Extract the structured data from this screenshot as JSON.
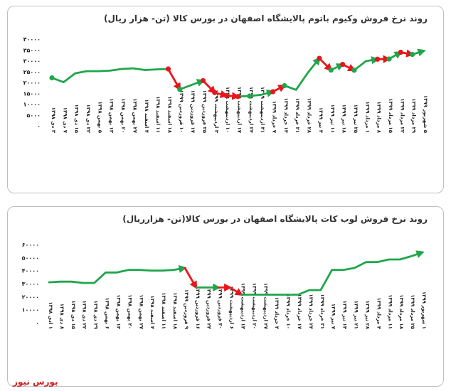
{
  "colors": {
    "green": "#1fa64b",
    "red": "#e8161b",
    "tick_text": "#222222",
    "title_text": "#333333"
  },
  "watermark": "بورس نیوز",
  "chart_data": [
    {
      "type": "line",
      "title": "روند نرخ فروش وکیوم باتوم پالایشگاه اصفهان در بورس کالا (تن- هزار ریال)",
      "ylim": [
        0,
        40000
      ],
      "yticks": [
        0,
        5000,
        10000,
        15000,
        20000,
        25000,
        30000,
        35000,
        40000
      ],
      "ytick_labels": [
        "۰",
        "۵۰۰۰",
        "۱۰۰۰۰",
        "۱۵۰۰۰",
        "۲۰۰۰۰",
        "۲۵۰۰۰",
        "۳۰۰۰۰",
        "۳۵۰۰۰",
        "۴۰۰۰۰"
      ],
      "grid": false,
      "categories": [
        "۳ دی ۱۳۹۸",
        "۷ دی ۱۳۹۸",
        "۱۵ دی ۱۳۹۸",
        "۲۲ دی ۱۳۹۸",
        "۵ بهمن ۱۳۹۸",
        "۱۳ بهمن ۱۳۹۸",
        "۲۰ بهمن ۱۳۹۸",
        "۲۷ بهمن ۱۳۹۸",
        "۴ اسفند ۱۳۹۸",
        "۱۱ اسفند ۱۳۹۸",
        "۱۸ اسفند ۱۳۹۸",
        "۱۰ فروردین ۱۳۹۹",
        "۱۷ فروردین ۱۳۹۹",
        "۲۵ فروردین ۱۳۹۹",
        "۳ اردیبهشت ۱۳۹۹",
        "۱۰ اردیبهشت ۱۳۹۹",
        "۱۷ اردیبهشت ۱۳۹۹",
        "۲۴ اردیبهشت ۱۳۹۹",
        "۳۱ اردیبهشت ۱۳۹۹",
        "۷ خرداد ۱۳۹۹",
        "۱۴ خرداد ۱۳۹۹",
        "۲۱ خرداد ۱۳۹۹",
        "۲۸ خرداد ۱۳۹۹",
        "۴ تیر ۱۳۹۹",
        "۱۱ تیر ۱۳۹۹",
        "۱۸ تیر ۱۳۹۹",
        "۲۵ تیر ۱۳۹۹",
        "۱ مرداد ۱۳۹۹",
        "۸ مرداد ۱۳۹۹",
        "۱۵ مرداد ۱۳۹۹",
        "۲۲ مرداد ۱۳۹۹",
        "۲۹ مرداد ۱۳۹۹",
        "۵ شهریور ۱۳۹۹"
      ],
      "values": [
        21800,
        19800,
        23900,
        24900,
        24900,
        25100,
        25900,
        26200,
        25400,
        25700,
        25900,
        16500,
        18500,
        20500,
        15000,
        13600,
        13200,
        13400,
        14000,
        15400,
        18200,
        16300,
        24100,
        30800,
        25400,
        28000,
        25300,
        29500,
        30400,
        30500,
        33600,
        32600,
        34300
      ],
      "markers": [
        {
          "index": 0,
          "color": "green"
        },
        {
          "index": 10,
          "color": "red"
        },
        {
          "index": 11,
          "color": "green"
        },
        {
          "index": 13,
          "color": "red"
        },
        {
          "index": 14,
          "color": "red"
        },
        {
          "index": 15,
          "color": "red"
        },
        {
          "index": 16,
          "color": "red"
        },
        {
          "index": 17,
          "color": "green"
        },
        {
          "index": 19,
          "color": "red"
        },
        {
          "index": 20,
          "color": "green"
        },
        {
          "index": 23,
          "color": "red"
        },
        {
          "index": 24,
          "color": "green"
        },
        {
          "index": 25,
          "color": "red"
        },
        {
          "index": 26,
          "color": "green"
        },
        {
          "index": 28,
          "color": "red"
        },
        {
          "index": 29,
          "color": "green"
        },
        {
          "index": 30,
          "color": "red"
        },
        {
          "index": 31,
          "color": "green"
        }
      ],
      "segments": [
        {
          "from": 0,
          "to": 10,
          "color": "green"
        },
        {
          "from": 10,
          "to": 11,
          "color": "red",
          "arrow": true
        },
        {
          "from": 11,
          "to": 13,
          "color": "green",
          "arrow": true
        },
        {
          "from": 13,
          "to": 14,
          "color": "red",
          "arrow": true
        },
        {
          "from": 14,
          "to": 15,
          "color": "red",
          "arrow": true
        },
        {
          "from": 15,
          "to": 16,
          "color": "red",
          "arrow": true
        },
        {
          "from": 16,
          "to": 17,
          "color": "green"
        },
        {
          "from": 17,
          "to": 19,
          "color": "green",
          "arrow": true
        },
        {
          "from": 19,
          "to": 20,
          "color": "red",
          "arrow": true
        },
        {
          "from": 20,
          "to": 23,
          "color": "green",
          "arrow": true
        },
        {
          "from": 23,
          "to": 24,
          "color": "red",
          "arrow": true
        },
        {
          "from": 24,
          "to": 25,
          "color": "green",
          "arrow": true
        },
        {
          "from": 25,
          "to": 26,
          "color": "red",
          "arrow": true
        },
        {
          "from": 26,
          "to": 28,
          "color": "green",
          "arrow": true
        },
        {
          "from": 28,
          "to": 29,
          "color": "red",
          "arrow": true
        },
        {
          "from": 29,
          "to": 30,
          "color": "green",
          "arrow": true
        },
        {
          "from": 30,
          "to": 31,
          "color": "red",
          "arrow": true
        },
        {
          "from": 31,
          "to": 32,
          "color": "green",
          "arrow": true
        }
      ]
    },
    {
      "type": "line",
      "title": "روند نرخ فروش لوب کات پالایشگاه اصفهان در بورس کالا(تن- هزارریال)",
      "ylim": [
        0,
        60000
      ],
      "yticks": [
        0,
        10000,
        20000,
        30000,
        40000,
        50000,
        60000
      ],
      "ytick_labels": [
        "۰",
        "۱۰۰۰۰",
        "۲۰۰۰۰",
        "۳۰۰۰۰",
        "۴۰۰۰۰",
        "۵۰۰۰۰",
        "۶۰۰۰۰"
      ],
      "grid": false,
      "categories": [
        "۱ ادی ۱۳۹۸",
        "۸ دی ۱۳۹۸",
        "۱۵ دی ۱۳۹۸",
        "۲۲ دی ۱۳۹۸",
        "۲۹ دی ۱۳۹۸",
        "۶ بهمن ۱۳۹۸",
        "۱۳ بهمن ۱۳۹۸",
        "۲۰ بهمن ۱۳۹۸",
        "۲۷ بهمن ۱۳۹۸",
        "۴ اسفند ۱۳۹۸",
        "۱۱ اسفند ۱۳۹۸",
        "۱۸ اسفند ۱۳۹۸",
        "۹ فروردین ۱۳۹۹",
        "۱۶ فروردین ۱۳۹۹",
        "۲۳ فروردین ۱۳۹۹",
        "۳۰ فروردین ۱۳۹۹",
        "۶ اردیبهشت ۱۳۹۹",
        "۱۳ اردیبهشت ۱۳۹۹",
        "۲۰ اردیبهشت ۱۳۹۹",
        "۲۷ اردیبهشت ۱۳۹۹",
        "۳ خرداد ۱۳۹۹",
        "۱۰ خرداد ۱۳۹۹",
        "۱۷ خرداد ۱۳۹۹",
        "۲۴ خرداد ۱۳۹۹",
        "۳۱ خرداد ۱۳۹۹",
        "۷ تیر ۱۳۹۹",
        "۱۴ تیر ۱۳۹۹",
        "۲۱ تیر ۱۳۹۹",
        "۲۸ تیر ۱۳۹۹",
        "۴ مرداد ۱۳۹۹",
        "۱۱ مرداد ۱۳۹۹",
        "۱۸ مرداد ۱۳۹۹",
        "۲۵ مرداد ۱۳۹۹",
        "۱ شهریور ۱۳۹۹"
      ],
      "values": [
        30500,
        31000,
        31000,
        30000,
        30000,
        38000,
        38000,
        40000,
        40000,
        39500,
        39500,
        40000,
        41500,
        26500,
        26500,
        26500,
        26500,
        21000,
        21000,
        21000,
        21000,
        21000,
        21000,
        24500,
        24500,
        40000,
        40000,
        41500,
        46000,
        46000,
        48000,
        48000,
        50500,
        53500
      ],
      "markers": [],
      "segments": [
        {
          "from": 0,
          "to": 12,
          "color": "green",
          "arrow": true
        },
        {
          "from": 12,
          "to": 13,
          "color": "red",
          "arrow": true
        },
        {
          "from": 13,
          "to": 15,
          "color": "green",
          "arrow": true
        },
        {
          "from": 15,
          "to": 16,
          "color": "red",
          "arrow": true
        },
        {
          "from": 16,
          "to": 17,
          "color": "red",
          "arrow": true
        },
        {
          "from": 17,
          "to": 24,
          "color": "green"
        },
        {
          "from": 24,
          "to": 33,
          "color": "green",
          "arrow": true
        }
      ]
    }
  ]
}
